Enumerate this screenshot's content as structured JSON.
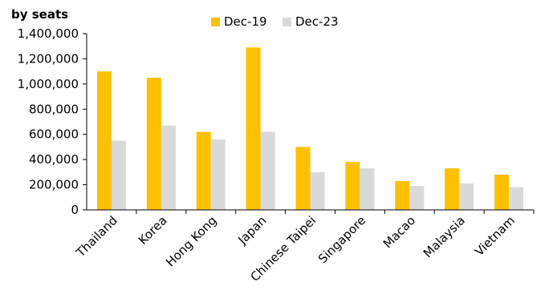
{
  "chart_data": {
    "type": "bar",
    "unit_label": "by seats",
    "categories": [
      "Thailand",
      "Korea",
      "Hong Kong",
      "Japan",
      "Chinese Taipei",
      "Singapore",
      "Macao",
      "Malaysia",
      "Vietnam"
    ],
    "series": [
      {
        "name": "Dec-19",
        "color": "#FFC000",
        "values": [
          1100000,
          1050000,
          620000,
          1290000,
          500000,
          380000,
          230000,
          330000,
          280000
        ]
      },
      {
        "name": "Dec-23",
        "color": "#D9D9D9",
        "values": [
          550000,
          670000,
          560000,
          620000,
          300000,
          330000,
          190000,
          210000,
          180000
        ]
      }
    ],
    "ylim": [
      0,
      1400000
    ],
    "yticks": [
      0,
      200000,
      400000,
      600000,
      800000,
      1000000,
      1200000,
      1400000
    ],
    "ytick_labels": [
      "0",
      "200,000",
      "400,000",
      "600,000",
      "800,000",
      "1,000,000",
      "1,200,000",
      "1,400,000"
    ],
    "grid": false,
    "legend_position": "top"
  }
}
